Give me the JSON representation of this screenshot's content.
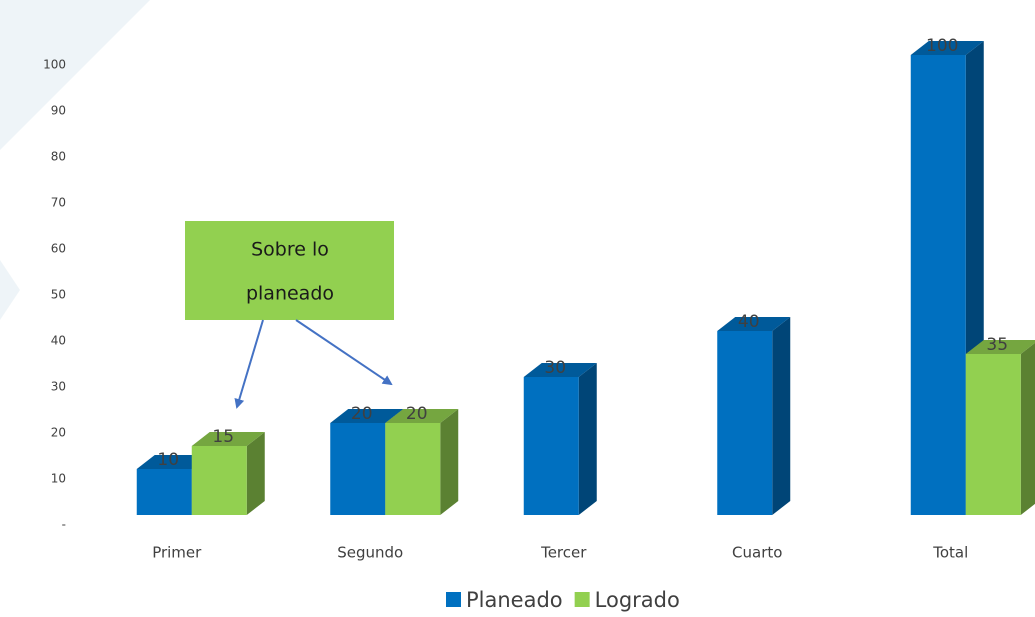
{
  "chart_data": {
    "type": "bar3d",
    "categories": [
      "Primer",
      "Segundo",
      "Tercer",
      "Cuarto",
      "Total"
    ],
    "series": [
      {
        "name": "Planeado",
        "color": "#0070c0",
        "values": [
          10,
          20,
          30,
          40,
          100
        ]
      },
      {
        "name": "Logrado",
        "color": "#92d050",
        "values": [
          15,
          20,
          null,
          null,
          35
        ]
      }
    ],
    "ylim": [
      0,
      100
    ],
    "yticks": [
      {
        "value": 0,
        "label": "-"
      },
      10,
      20,
      30,
      40,
      50,
      60,
      70,
      80,
      90,
      100
    ],
    "grid": false,
    "legend": "bottom",
    "annotation": [
      "Sobre lo",
      "planeado"
    ]
  }
}
